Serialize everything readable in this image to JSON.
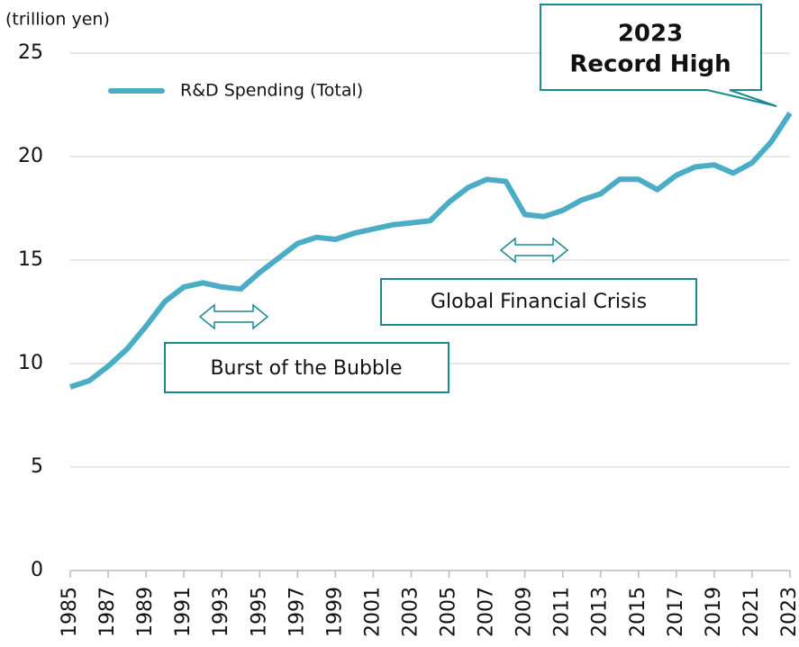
{
  "chart_data": {
    "type": "line",
    "y_label": "(trillion yen)",
    "x": [
      1985,
      1986,
      1987,
      1988,
      1989,
      1990,
      1991,
      1992,
      1993,
      1994,
      1995,
      1996,
      1997,
      1998,
      1999,
      2000,
      2001,
      2002,
      2003,
      2004,
      2005,
      2006,
      2007,
      2008,
      2009,
      2010,
      2011,
      2012,
      2013,
      2014,
      2015,
      2016,
      2017,
      2018,
      2019,
      2020,
      2021,
      2022,
      2023
    ],
    "series": [
      {
        "name": "R&D Spending (Total)",
        "color": "#4bacc6",
        "values": [
          8.87,
          9.17,
          9.87,
          10.7,
          11.8,
          13.0,
          13.7,
          13.9,
          13.7,
          13.6,
          14.4,
          15.1,
          15.8,
          16.1,
          16.0,
          16.3,
          16.5,
          16.7,
          16.8,
          16.9,
          17.8,
          18.5,
          18.9,
          18.8,
          17.2,
          17.1,
          17.4,
          17.9,
          18.2,
          18.9,
          18.9,
          18.4,
          19.1,
          19.5,
          19.6,
          19.2,
          19.7,
          20.7,
          22.1
        ]
      }
    ],
    "xlim": [
      1985,
      2023
    ],
    "xticks": [
      1985,
      1987,
      1989,
      1991,
      1993,
      1995,
      1997,
      1999,
      2001,
      2003,
      2005,
      2007,
      2009,
      2011,
      2013,
      2015,
      2017,
      2019,
      2021,
      2023
    ],
    "ylim": [
      0,
      25
    ],
    "yticks": [
      0,
      5,
      10,
      15,
      20,
      25
    ],
    "grid": true,
    "annotations": {
      "bubble": "Burst of the Bubble",
      "crisis": "Global Financial Crisis",
      "record": [
        "2023",
        "Record High"
      ]
    }
  }
}
